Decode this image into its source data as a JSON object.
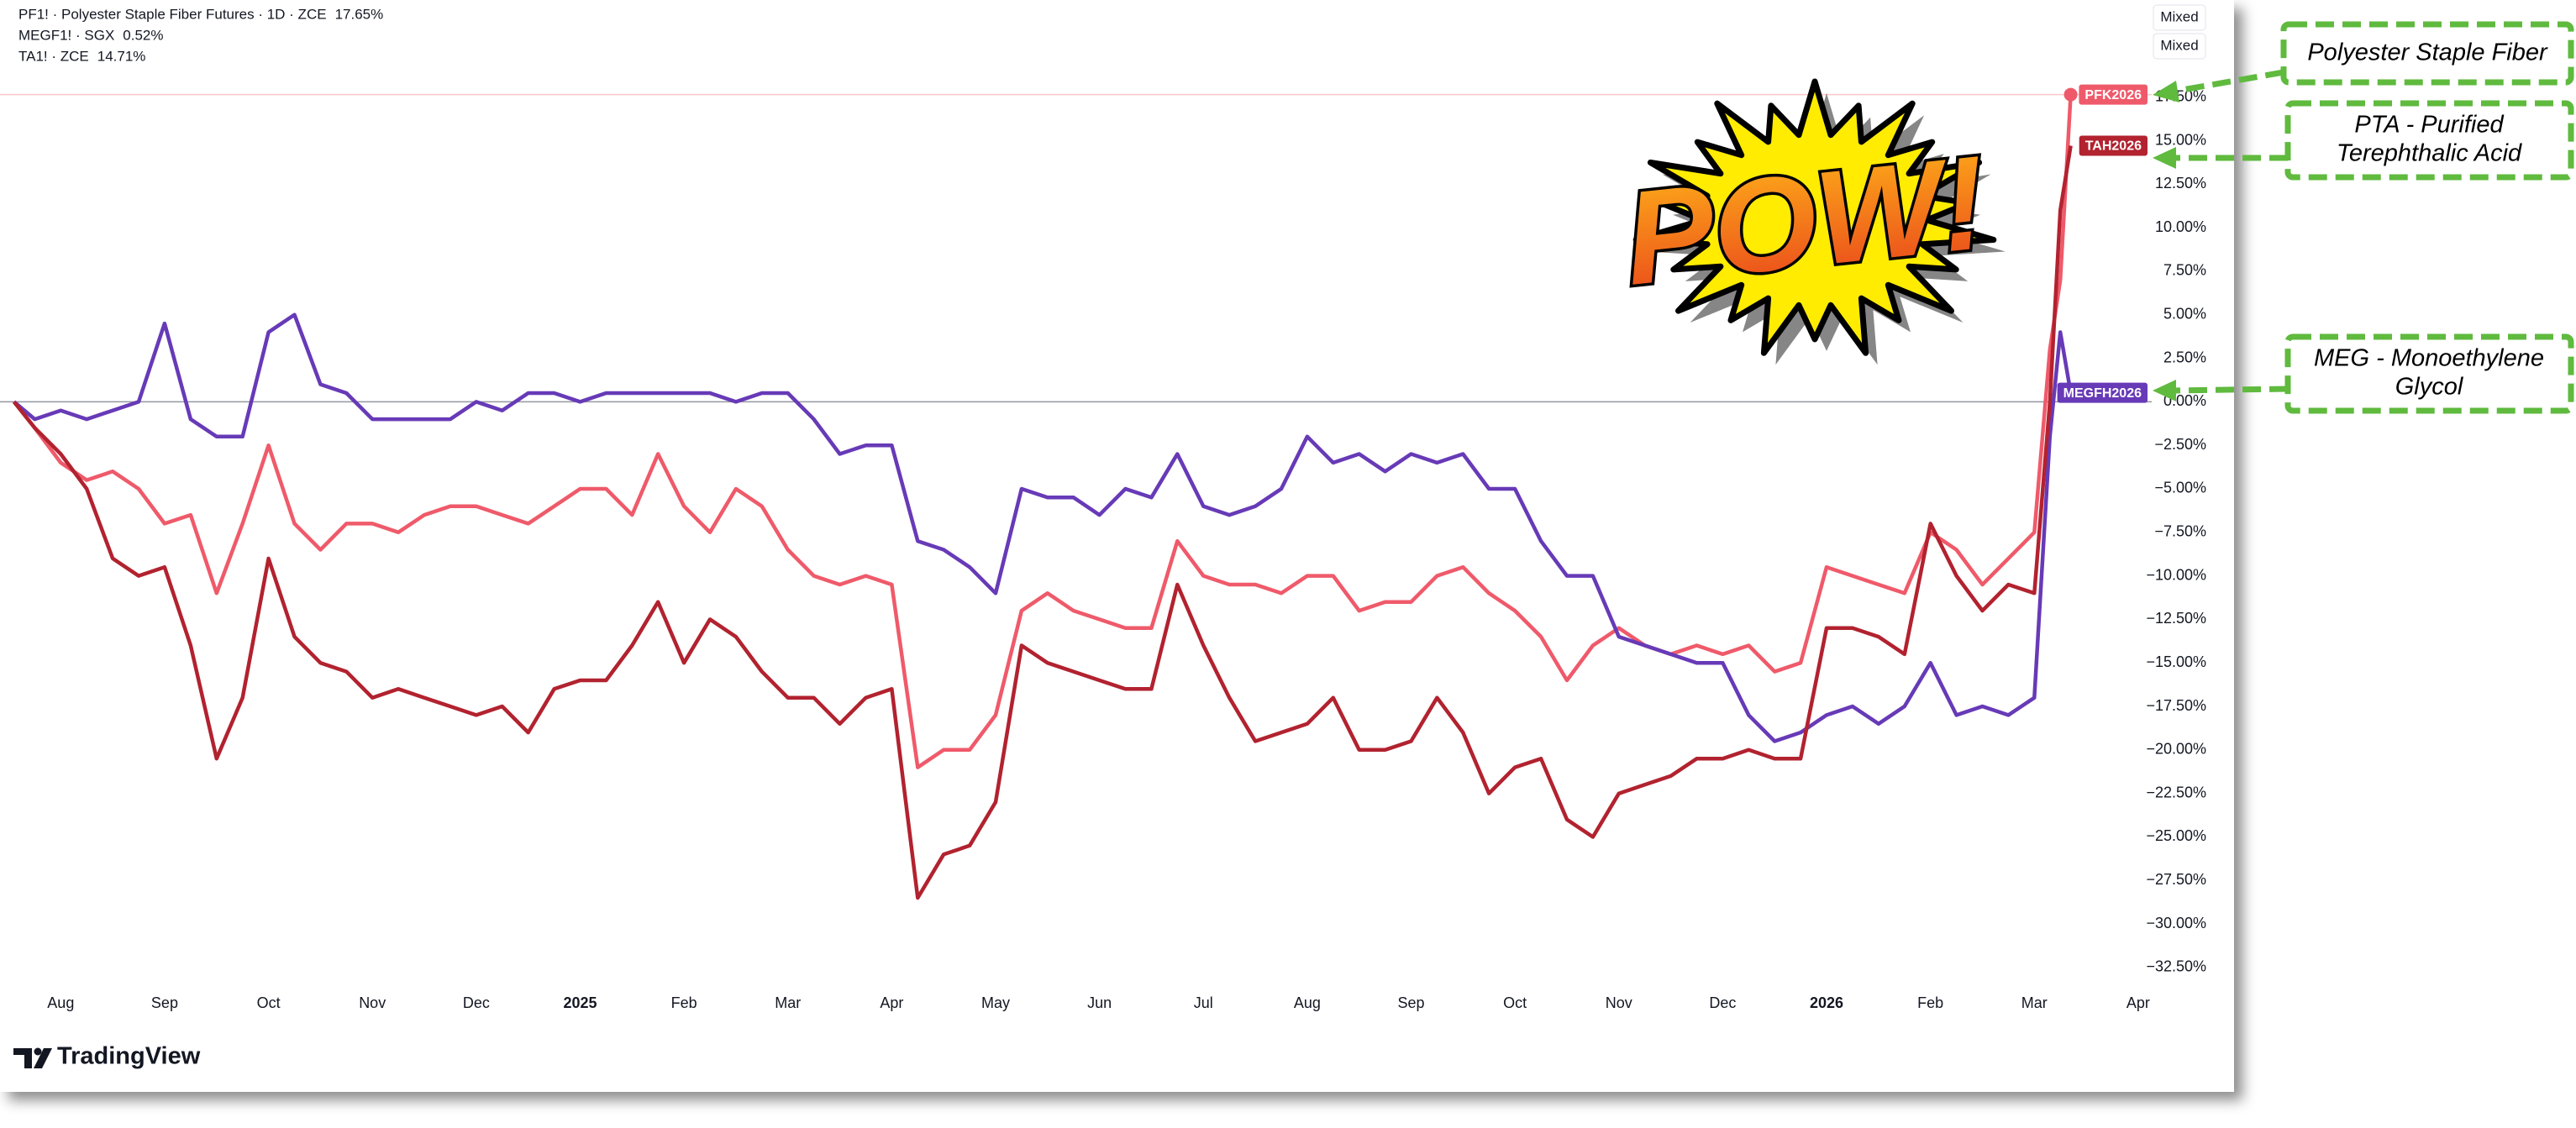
{
  "chart_data": {
    "type": "line",
    "legend": [
      {
        "name": "PF1! · Polyester Staple Fiber Futures · 1D · ZCE",
        "value_label": "17.65%"
      },
      {
        "name": "MEGF1! · SGX",
        "value_label": "0.52%"
      },
      {
        "name": "TA1! · ZCE",
        "value_label": "14.71%"
      }
    ],
    "scale_buttons": [
      "Mixed",
      "Mixed"
    ],
    "brand": "TradingView",
    "sticker": "POW!",
    "annotations": [
      [
        "Polyester Staple Fiber"
      ],
      [
        "PTA - Purified",
        "Terephthalic Acid"
      ],
      [
        "MEG - Monoethylene",
        "Glycol"
      ]
    ],
    "x": [
      -0.45,
      -0.25,
      0,
      0.25,
      0.5,
      0.75,
      1,
      1.25,
      1.5,
      1.75,
      2,
      2.25,
      2.5,
      2.75,
      3,
      3.25,
      3.5,
      3.75,
      4,
      4.25,
      4.5,
      4.75,
      5,
      5.25,
      5.5,
      5.75,
      6,
      6.25,
      6.5,
      6.75,
      7,
      7.25,
      7.5,
      7.75,
      8,
      8.25,
      8.5,
      8.75,
      9,
      9.25,
      9.5,
      9.75,
      10,
      10.25,
      10.5,
      10.75,
      11,
      11.25,
      11.5,
      11.75,
      12,
      12.25,
      12.5,
      12.75,
      13,
      13.25,
      13.5,
      13.75,
      14,
      14.25,
      14.5,
      14.75,
      15,
      15.25,
      15.5,
      15.75,
      16,
      16.25,
      16.5,
      16.75,
      17,
      17.25,
      17.5,
      17.75,
      18,
      18.25,
      18.5,
      18.75,
      19,
      19.15,
      19.25,
      19.35
    ],
    "series": [
      {
        "name": "PFK2026",
        "color": "#ef5a6a",
        "values": [
          0,
          -1.5,
          -3.5,
          -4.5,
          -4,
          -5,
          -7,
          -6.5,
          -11,
          -7,
          -2.5,
          -7,
          -8.5,
          -7,
          -7,
          -7.5,
          -6.5,
          -6,
          -6,
          -6.5,
          -7,
          -6,
          -5,
          -5,
          -6.5,
          -3,
          -6,
          -7.5,
          -5,
          -6,
          -8.5,
          -10,
          -10.5,
          -10,
          -10.5,
          -21,
          -20,
          -20,
          -18,
          -12,
          -11,
          -12,
          -12.5,
          -13,
          -13,
          -8,
          -10,
          -10.5,
          -10.5,
          -11,
          -10,
          -10,
          -12,
          -11.5,
          -11.5,
          -10,
          -9.5,
          -11,
          -12,
          -13.5,
          -16,
          -14,
          -13,
          -14,
          -14.5,
          -14,
          -14.5,
          -14,
          -15.5,
          -15,
          -9.5,
          -10,
          -10.5,
          -11,
          -7.5,
          -8.5,
          -10.5,
          -9,
          -7.5,
          3,
          7,
          17.65
        ]
      },
      {
        "name": "MEGFH2026",
        "color": "#673ab7",
        "values": [
          0,
          -1,
          -0.5,
          -1,
          -0.5,
          0,
          4.5,
          -1,
          -2,
          -2,
          4,
          5,
          1,
          0.5,
          -1,
          -1,
          -1,
          -1,
          0,
          -0.5,
          0.5,
          0.5,
          0,
          0.5,
          0.5,
          0.5,
          0.5,
          0.5,
          0,
          0.5,
          0.5,
          -1,
          -3,
          -2.5,
          -2.5,
          -8,
          -8.5,
          -9.5,
          -11,
          -5,
          -5.5,
          -5.5,
          -6.5,
          -5,
          -5.5,
          -3,
          -6,
          -6.5,
          -6,
          -5,
          -2,
          -3.5,
          -3,
          -4,
          -3,
          -3.5,
          -3,
          -5,
          -5,
          -8,
          -10,
          -10,
          -13.5,
          -14,
          -14.5,
          -15,
          -15,
          -18,
          -19.5,
          -19,
          -18,
          -17.5,
          -18.5,
          -17.5,
          -15,
          -18,
          -17.5,
          -18,
          -17,
          -2,
          4,
          0.52
        ]
      },
      {
        "name": "TAH2026",
        "color": "#b2222f",
        "values": [
          0,
          -1.5,
          -3,
          -5,
          -9,
          -10,
          -9.5,
          -14,
          -20.5,
          -17,
          -9,
          -13.5,
          -15,
          -15.5,
          -17,
          -16.5,
          -17,
          -17.5,
          -18,
          -17.5,
          -19,
          -16.5,
          -16,
          -16,
          -14,
          -11.5,
          -15,
          -12.5,
          -13.5,
          -15.5,
          -17,
          -17,
          -18.5,
          -17,
          -16.5,
          -28.5,
          -26,
          -25.5,
          -23,
          -14,
          -15,
          -15.5,
          -16,
          -16.5,
          -16.5,
          -10.5,
          -14,
          -17,
          -19.5,
          -19,
          -18.5,
          -17,
          -20,
          -20,
          -19.5,
          -17,
          -19,
          -22.5,
          -21,
          -20.5,
          -24,
          -25,
          -22.5,
          -22,
          -21.5,
          -20.5,
          -20.5,
          -20,
          -20.5,
          -20.5,
          -13,
          -13,
          -13.5,
          -14.5,
          -7,
          -10,
          -12,
          -10.5,
          -11,
          0,
          11,
          14.71
        ]
      }
    ],
    "xlim": [
      -0.5,
      20.13
    ],
    "xticks": [
      {
        "value": 0,
        "label": "Aug"
      },
      {
        "value": 1,
        "label": "Sep"
      },
      {
        "value": 2,
        "label": "Oct"
      },
      {
        "value": 3,
        "label": "Nov"
      },
      {
        "value": 4,
        "label": "Dec"
      },
      {
        "value": 5,
        "label": "2025"
      },
      {
        "value": 6,
        "label": "Feb"
      },
      {
        "value": 7,
        "label": "Mar"
      },
      {
        "value": 8,
        "label": "Apr"
      },
      {
        "value": 9,
        "label": "May"
      },
      {
        "value": 10,
        "label": "Jun"
      },
      {
        "value": 11,
        "label": "Jul"
      },
      {
        "value": 12,
        "label": "Aug"
      },
      {
        "value": 13,
        "label": "Sep"
      },
      {
        "value": 14,
        "label": "Oct"
      },
      {
        "value": 15,
        "label": "Nov"
      },
      {
        "value": 16,
        "label": "Dec"
      },
      {
        "value": 17,
        "label": "2026"
      },
      {
        "value": 18,
        "label": "Feb"
      },
      {
        "value": 19,
        "label": "Mar"
      },
      {
        "value": 20,
        "label": "Apr"
      }
    ],
    "ylim": [
      -35.4,
      22.6
    ],
    "yticks": [
      {
        "value": -32.5,
        "label": "−32.50%"
      },
      {
        "value": -30,
        "label": "−30.00%"
      },
      {
        "value": -27.5,
        "label": "−27.50%"
      },
      {
        "value": -25,
        "label": "−25.00%"
      },
      {
        "value": -22.5,
        "label": "−22.50%"
      },
      {
        "value": -20,
        "label": "−20.00%"
      },
      {
        "value": -17.5,
        "label": "−17.50%"
      },
      {
        "value": -15,
        "label": "−15.00%"
      },
      {
        "value": -12.5,
        "label": "−12.50%"
      },
      {
        "value": -10,
        "label": "−10.00%"
      },
      {
        "value": -7.5,
        "label": "−7.50%"
      },
      {
        "value": -5,
        "label": "−5.00%"
      },
      {
        "value": -2.5,
        "label": "−2.50%"
      },
      {
        "value": 0,
        "label": "0.00%"
      },
      {
        "value": 2.5,
        "label": "2.50%"
      },
      {
        "value": 5,
        "label": "5.00%"
      },
      {
        "value": 7.5,
        "label": "7.50%"
      },
      {
        "value": 10,
        "label": "10.00%"
      },
      {
        "value": 12.5,
        "label": "12.50%"
      },
      {
        "value": 15,
        "label": "15.00%"
      },
      {
        "value": 17.5,
        "label": "17.50%"
      }
    ],
    "grid": false
  }
}
